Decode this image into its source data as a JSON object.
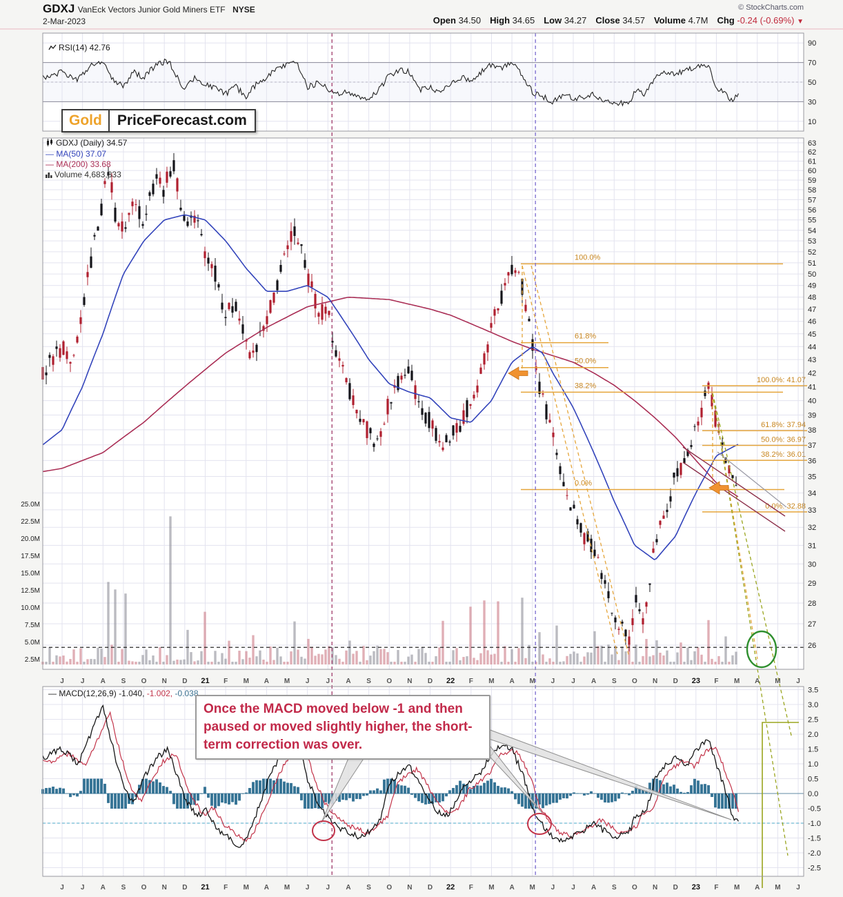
{
  "header": {
    "symbol": "GDXJ",
    "name": "VanEck Vectors Junior Gold Miners ETF",
    "exchange": "NYSE",
    "date": "2-Mar-2023",
    "copyright": "© StockCharts.com",
    "quote": {
      "open_l": "Open",
      "open": "34.50",
      "high_l": "High",
      "high": "34.65",
      "low_l": "Low",
      "low": "34.27",
      "close_l": "Close",
      "close": "34.57",
      "vol_l": "Volume",
      "vol": "4.7M",
      "chg_l": "Chg",
      "chg": "-0.24 (-0.69%)",
      "chg_arrow": "▼"
    }
  },
  "logo": {
    "gold": "Gold",
    "rest": "PriceForecast.com"
  },
  "rsi_panel": {
    "label": "RSI(14) 42.76"
  },
  "legend": {
    "title": "GDXJ (Daily) 34.57",
    "ma50": "MA(50) 37.07",
    "ma200": "MA(200) 33.68",
    "volume": "Volume 4,683,833"
  },
  "macd_panel": {
    "label": "MACD(12,26,9)",
    "macd_value": "-1.040,",
    "signal_value": "-1.002,",
    "hist_value": "-0.038"
  },
  "annotation": {
    "text": "Once the MACD moved below -1 and then paused or moved slightly higher, the short-term correction was over."
  },
  "chart_data": {
    "type": "candlestick",
    "title": "GDXJ VanEck Vectors Junior Gold Miners ETF NYSE",
    "date": "2-Mar-2023",
    "quote": {
      "open": 34.5,
      "high": 34.65,
      "low": 34.27,
      "close": 34.57,
      "volume": "4.7M",
      "chg": -0.24,
      "chg_pct": -0.69
    },
    "x_axis_labels": [
      "J",
      "J",
      "A",
      "S",
      "O",
      "N",
      "D",
      "21",
      "F",
      "M",
      "A",
      "M",
      "J",
      "J",
      "A",
      "S",
      "O",
      "N",
      "D",
      "22",
      "F",
      "M",
      "A",
      "M",
      "J",
      "J",
      "A",
      "S",
      "O",
      "N",
      "D",
      "23",
      "F",
      "M",
      "A",
      "M",
      "J"
    ],
    "price_axis": {
      "scale": "log",
      "min": 26,
      "max": 63,
      "step": 1
    },
    "volume_axis_labels": [
      "25.0M",
      "22.5M",
      "20.0M",
      "17.5M",
      "15.0M",
      "12.5M",
      "10.0M",
      "7.5M",
      "5.0M",
      "2.5M"
    ],
    "rsi": {
      "value": 42.76,
      "ticks": [
        90,
        70,
        50,
        30,
        10
      ],
      "keyframes": [
        [
          -0.95,
          55
        ],
        [
          0,
          60
        ],
        [
          0.7,
          52
        ],
        [
          1.3,
          65
        ],
        [
          2,
          72
        ],
        [
          2.4,
          55
        ],
        [
          3,
          45
        ],
        [
          3.5,
          60
        ],
        [
          4,
          55
        ],
        [
          4.6,
          68
        ],
        [
          5.2,
          72
        ],
        [
          6,
          42
        ],
        [
          6.5,
          55
        ],
        [
          7,
          48
        ],
        [
          8,
          38
        ],
        [
          8.5,
          45
        ],
        [
          9,
          35
        ],
        [
          9.5,
          48
        ],
        [
          10,
          55
        ],
        [
          10.6,
          65
        ],
        [
          11,
          68
        ],
        [
          11.5,
          70
        ],
        [
          12,
          45
        ],
        [
          12.6,
          50
        ],
        [
          13,
          42
        ],
        [
          13.5,
          38
        ],
        [
          14,
          40
        ],
        [
          14.6,
          35
        ],
        [
          15,
          33
        ],
        [
          15.5,
          42
        ],
        [
          16,
          58
        ],
        [
          16.6,
          62
        ],
        [
          17,
          60
        ],
        [
          17.5,
          42
        ],
        [
          18,
          45
        ],
        [
          18.5,
          38
        ],
        [
          19,
          48
        ],
        [
          19.6,
          55
        ],
        [
          20,
          52
        ],
        [
          20.5,
          60
        ],
        [
          21,
          68
        ],
        [
          21.5,
          65
        ],
        [
          22,
          70
        ],
        [
          22.4,
          60
        ],
        [
          23,
          40
        ],
        [
          23.5,
          35
        ],
        [
          24,
          30
        ],
        [
          24.6,
          38
        ],
        [
          25,
          32
        ],
        [
          25.6,
          35
        ],
        [
          26,
          38
        ],
        [
          26.5,
          30
        ],
        [
          27,
          28
        ],
        [
          27.8,
          30
        ],
        [
          28,
          42
        ],
        [
          28.5,
          38
        ],
        [
          29,
          55
        ],
        [
          29.5,
          60
        ],
        [
          30,
          58
        ],
        [
          30.5,
          62
        ],
        [
          31,
          65
        ],
        [
          31.6,
          68
        ],
        [
          32,
          45
        ],
        [
          32.4,
          38
        ],
        [
          32.8,
          30
        ],
        [
          33.15,
          42.8
        ]
      ]
    },
    "price_keyframes": [
      [
        -0.95,
        42
      ],
      [
        0,
        44
      ],
      [
        0.5,
        42
      ],
      [
        1,
        47
      ],
      [
        1.5,
        52
      ],
      [
        2,
        57
      ],
      [
        2.3,
        60.5
      ],
      [
        2.6,
        55.5
      ],
      [
        3,
        54
      ],
      [
        3.5,
        57
      ],
      [
        4,
        55
      ],
      [
        4.6,
        59.5
      ],
      [
        5,
        58
      ],
      [
        5.4,
        61
      ],
      [
        6,
        54.5
      ],
      [
        6.5,
        55.5
      ],
      [
        7,
        52
      ],
      [
        7.5,
        50
      ],
      [
        8,
        46.5
      ],
      [
        8.5,
        47.5
      ],
      [
        9,
        44
      ],
      [
        9.3,
        43.2
      ],
      [
        10,
        46
      ],
      [
        10.5,
        49
      ],
      [
        11,
        52
      ],
      [
        11.4,
        54.5
      ],
      [
        12,
        50
      ],
      [
        12.5,
        47
      ],
      [
        13,
        46.5
      ],
      [
        13.6,
        42.5
      ],
      [
        14,
        41
      ],
      [
        14.5,
        39
      ],
      [
        15,
        37.8
      ],
      [
        15.4,
        36.9
      ],
      [
        16,
        40
      ],
      [
        16.5,
        41.5
      ],
      [
        17,
        42.3
      ],
      [
        17.5,
        39.5
      ],
      [
        18,
        38.5
      ],
      [
        18.6,
        36.8
      ],
      [
        19,
        37.5
      ],
      [
        19.5,
        38.5
      ],
      [
        20,
        40
      ],
      [
        20.5,
        42
      ],
      [
        21,
        45.5
      ],
      [
        21.5,
        48
      ],
      [
        22,
        50.3
      ],
      [
        22.3,
        51
      ],
      [
        22.7,
        47
      ],
      [
        23,
        44
      ],
      [
        23.4,
        40.5
      ],
      [
        24,
        38
      ],
      [
        24.4,
        35
      ],
      [
        25,
        33
      ],
      [
        25.5,
        31.5
      ],
      [
        26,
        31
      ],
      [
        26.5,
        29
      ],
      [
        27,
        27.5
      ],
      [
        27.8,
        26.1
      ],
      [
        28,
        28.5
      ],
      [
        28.4,
        27
      ],
      [
        29,
        31
      ],
      [
        29.5,
        33
      ],
      [
        30,
        35
      ],
      [
        30.5,
        36
      ],
      [
        31,
        38
      ],
      [
        31.6,
        41
      ],
      [
        32,
        38.5
      ],
      [
        32.3,
        37
      ],
      [
        32.6,
        35.5
      ],
      [
        33,
        34.2
      ],
      [
        33.15,
        34.6
      ]
    ],
    "ma50_keyframes": [
      [
        -0.95,
        37
      ],
      [
        0,
        38
      ],
      [
        1,
        41
      ],
      [
        2,
        45
      ],
      [
        3,
        50
      ],
      [
        4,
        53
      ],
      [
        5,
        55
      ],
      [
        6,
        55.5
      ],
      [
        7,
        55
      ],
      [
        8,
        53
      ],
      [
        9,
        50.5
      ],
      [
        10,
        48.5
      ],
      [
        11,
        48.5
      ],
      [
        12,
        49
      ],
      [
        13,
        48
      ],
      [
        14,
        45.5
      ],
      [
        15,
        43
      ],
      [
        16,
        41.2
      ],
      [
        17,
        40.6
      ],
      [
        18,
        40.2
      ],
      [
        19,
        38.8
      ],
      [
        20,
        38.5
      ],
      [
        21,
        40
      ],
      [
        22,
        42.8
      ],
      [
        23,
        44
      ],
      [
        23.5,
        43.5
      ],
      [
        24,
        42
      ],
      [
        25,
        39.5
      ],
      [
        26,
        36.5
      ],
      [
        27,
        33.5
      ],
      [
        28,
        31
      ],
      [
        29,
        30.2
      ],
      [
        30,
        31.5
      ],
      [
        31,
        34
      ],
      [
        32,
        36.3
      ],
      [
        33.15,
        37.1
      ]
    ],
    "ma200_keyframes": [
      [
        -0.95,
        35.3
      ],
      [
        0,
        35.5
      ],
      [
        2,
        36.5
      ],
      [
        4,
        38.5
      ],
      [
        6,
        41
      ],
      [
        8,
        43.5
      ],
      [
        10,
        45.5
      ],
      [
        12,
        47.2
      ],
      [
        14,
        48
      ],
      [
        16,
        47.8
      ],
      [
        18,
        47
      ],
      [
        19,
        46.5
      ],
      [
        20,
        45.8
      ],
      [
        21,
        45.1
      ],
      [
        22,
        44.4
      ],
      [
        23,
        43.8
      ],
      [
        24,
        43.3
      ],
      [
        25,
        42.8
      ],
      [
        26,
        42
      ],
      [
        27,
        41.1
      ],
      [
        28,
        40
      ],
      [
        29,
        38.8
      ],
      [
        30,
        37.5
      ],
      [
        31,
        36
      ],
      [
        32,
        34.6
      ],
      [
        33.15,
        33.7
      ]
    ],
    "macd": {
      "values": [
        -1.04,
        -1.002,
        -0.038
      ],
      "ticks": [
        "3.5",
        "3.0",
        "2.5",
        "2.0",
        "1.5",
        "1.0",
        "0.5",
        "0.0",
        "-0.5",
        "-1.0",
        "-1.5",
        "-2.0",
        "-2.5"
      ],
      "keyframes": [
        [
          -0.95,
          1.2
        ],
        [
          0,
          1.5
        ],
        [
          0.8,
          1
        ],
        [
          1.5,
          2.2
        ],
        [
          2,
          3
        ],
        [
          2.5,
          1.5
        ],
        [
          3,
          0.2
        ],
        [
          3.5,
          -0.3
        ],
        [
          4,
          0.5
        ],
        [
          4.6,
          1.2
        ],
        [
          5.2,
          1.5
        ],
        [
          6,
          -0.2
        ],
        [
          6.6,
          -0.8
        ],
        [
          7,
          -0.5
        ],
        [
          7.6,
          -1.2
        ],
        [
          8,
          -1.4
        ],
        [
          8.6,
          -1.8
        ],
        [
          9,
          -1.5
        ],
        [
          9.6,
          -0.5
        ],
        [
          10,
          0.3
        ],
        [
          10.6,
          1.2
        ],
        [
          11,
          1.6
        ],
        [
          11.5,
          1.8
        ],
        [
          12,
          0.5
        ],
        [
          12.6,
          -0.5
        ],
        [
          13,
          -0.8
        ],
        [
          13.6,
          -1.2
        ],
        [
          14,
          -1.3
        ],
        [
          14.6,
          -1.5
        ],
        [
          15,
          -1.3
        ],
        [
          15.6,
          -0.8
        ],
        [
          16,
          0.3
        ],
        [
          16.6,
          0.8
        ],
        [
          17,
          0.9
        ],
        [
          17.6,
          0.2
        ],
        [
          18,
          -0.3
        ],
        [
          18.6,
          -0.8
        ],
        [
          19,
          -0.6
        ],
        [
          19.6,
          0.2
        ],
        [
          20,
          0.4
        ],
        [
          20.6,
          0.8
        ],
        [
          21,
          1.4
        ],
        [
          21.6,
          1.6
        ],
        [
          22,
          1.5
        ],
        [
          22.6,
          0.5
        ],
        [
          23,
          -0.5
        ],
        [
          23.6,
          -1.2
        ],
        [
          24,
          -1.5
        ],
        [
          24.6,
          -1.6
        ],
        [
          25,
          -1.4
        ],
        [
          25.6,
          -1.2
        ],
        [
          26,
          -1
        ],
        [
          26.6,
          -1.3
        ],
        [
          27,
          -1.5
        ],
        [
          27.8,
          -1.2
        ],
        [
          28,
          -0.8
        ],
        [
          28.6,
          -0.5
        ],
        [
          29,
          0.5
        ],
        [
          29.6,
          1
        ],
        [
          30,
          1.2
        ],
        [
          30.6,
          1
        ],
        [
          31,
          1.5
        ],
        [
          31.6,
          1.8
        ],
        [
          32,
          1
        ],
        [
          32.4,
          0.2
        ],
        [
          32.8,
          -0.8
        ],
        [
          33.15,
          -1.04
        ]
      ]
    },
    "volume_spikes": [
      [
        2.3,
        16
      ],
      [
        2.6,
        10
      ],
      [
        3.1,
        8
      ],
      [
        5.3,
        21
      ],
      [
        6.1,
        9
      ],
      [
        7,
        8
      ],
      [
        8.1,
        10
      ],
      [
        9.3,
        7
      ],
      [
        11.4,
        8
      ],
      [
        12.1,
        7
      ],
      [
        14,
        7
      ],
      [
        16,
        6
      ],
      [
        18.6,
        7
      ],
      [
        20,
        12
      ],
      [
        20.7,
        17
      ],
      [
        21.3,
        10
      ],
      [
        22.5,
        8
      ],
      [
        23.3,
        7
      ],
      [
        24.2,
        6
      ],
      [
        26,
        6
      ],
      [
        27.8,
        10
      ],
      [
        28.5,
        7
      ],
      [
        29,
        8
      ],
      [
        30.2,
        6
      ],
      [
        31.6,
        7
      ],
      [
        32.4,
        6
      ]
    ],
    "fib_left": {
      "levels": [
        {
          "pct": "100.0%",
          "price": 50.9
        },
        {
          "pct": "61.8%",
          "price": 44.3
        },
        {
          "pct": "50.0%",
          "price": 42.4
        },
        {
          "pct": "38.2%",
          "price": 40.6
        },
        {
          "pct": "0.0%",
          "price": 34.2
        }
      ]
    },
    "fib_right": {
      "levels": [
        {
          "pct": "100.0%",
          "value": "41.07",
          "price": 41.07
        },
        {
          "pct": "61.8%",
          "value": "37.94",
          "price": 37.94
        },
        {
          "pct": "50.0%",
          "value": "36.97",
          "price": 36.97
        },
        {
          "pct": "38.2%",
          "value": "36.01",
          "price": 36.01
        },
        {
          "pct": "0.0%",
          "value": "32.88",
          "price": 32.88
        }
      ]
    },
    "support_dashed_price": 25.9,
    "vlines": [
      {
        "x_idx": 13.2,
        "color": "#a03a6a"
      },
      {
        "x_idx": 23.15,
        "color": "#7a6ad0"
      }
    ],
    "colors": {
      "candle_up": "#15151a",
      "candle_down": "#b02030",
      "ma50": "#3344bb",
      "ma200": "#aa2e55",
      "fib": "#e5a53a",
      "fib_label": "#c8861f",
      "hist": "#2e6f91",
      "signal": "#c23349",
      "green_circle": "#2f8f2f",
      "olive": "#9aa51e",
      "grid": "#e3e3ef"
    }
  }
}
